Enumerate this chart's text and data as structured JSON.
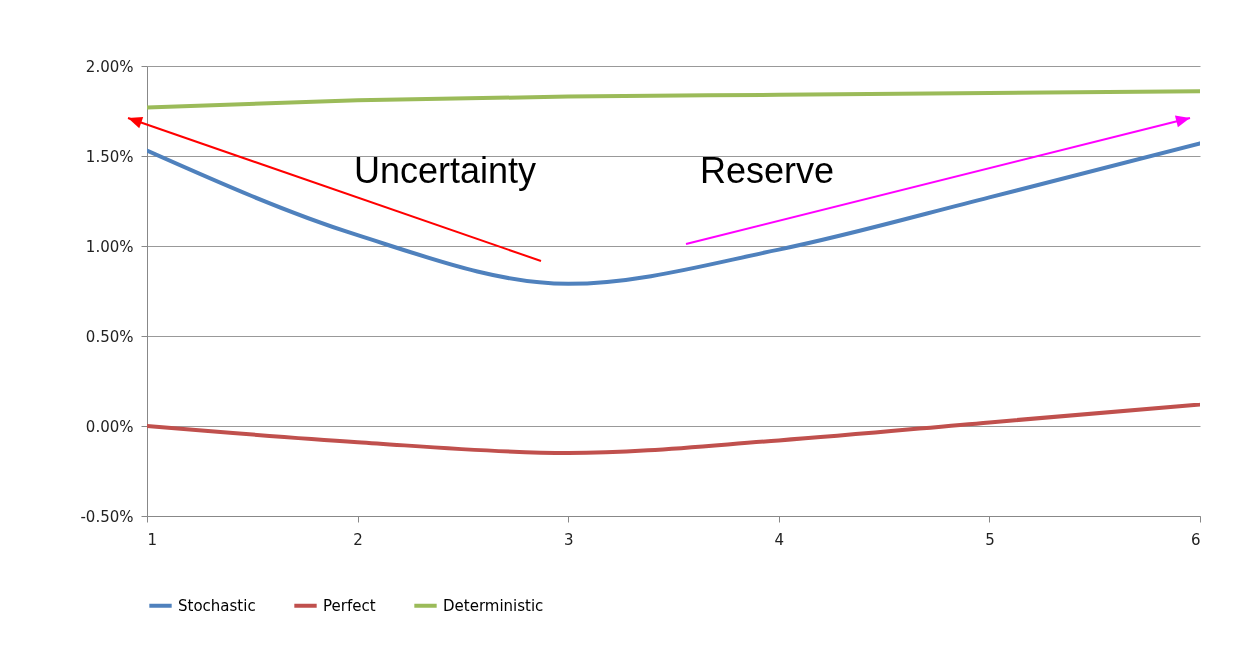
{
  "chart_data": {
    "type": "line",
    "x": [
      1,
      2,
      3,
      4,
      5,
      6
    ],
    "series": [
      {
        "name": "Stochastic",
        "color": "#4f81bd",
        "values": [
          1.53,
          1.06,
          0.79,
          0.98,
          1.27,
          1.57
        ]
      },
      {
        "name": "Perfect",
        "color": "#c0504d",
        "values": [
          0.0,
          -0.09,
          -0.15,
          -0.08,
          0.02,
          0.12
        ]
      },
      {
        "name": "Deterministic",
        "color": "#9bbb59",
        "values": [
          1.77,
          1.81,
          1.83,
          1.84,
          1.85,
          1.86
        ]
      }
    ],
    "xlim": [
      1,
      6
    ],
    "xticks": [
      1,
      2,
      3,
      4,
      5,
      6
    ],
    "ylim": [
      -0.5,
      2.0
    ],
    "yticks": [
      {
        "value": -0.5,
        "label": "-0.50%"
      },
      {
        "value": 0,
        "label": "0.00%"
      },
      {
        "value": 0.5,
        "label": "0.50%"
      },
      {
        "value": 1.0,
        "label": "1.00%"
      },
      {
        "value": 1.5,
        "label": "1.50%"
      },
      {
        "value": 2.0,
        "label": "2.00%"
      }
    ],
    "grid": "y",
    "legend": "bottom",
    "marker": "none",
    "line_style": "solid",
    "annotations": [
      "Uncertainty",
      "Reserve"
    ]
  }
}
